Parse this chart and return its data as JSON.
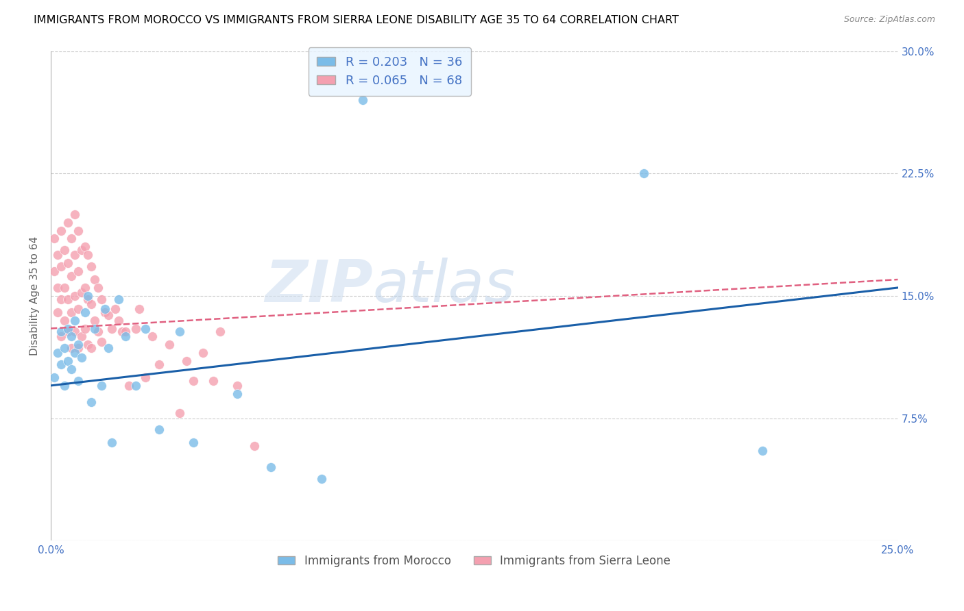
{
  "title": "IMMIGRANTS FROM MOROCCO VS IMMIGRANTS FROM SIERRA LEONE DISABILITY AGE 35 TO 64 CORRELATION CHART",
  "source": "Source: ZipAtlas.com",
  "ylabel_label": "Disability Age 35 to 64",
  "xlim": [
    0.0,
    0.25
  ],
  "ylim": [
    0.0,
    0.3
  ],
  "x_ticks": [
    0.0,
    0.05,
    0.1,
    0.15,
    0.2,
    0.25
  ],
  "x_tick_labels": [
    "0.0%",
    "",
    "",
    "",
    "",
    "25.0%"
  ],
  "y_ticks": [
    0.0,
    0.075,
    0.15,
    0.225,
    0.3
  ],
  "y_tick_labels": [
    "",
    "7.5%",
    "15.0%",
    "22.5%",
    "30.0%"
  ],
  "morocco_color": "#7bbce8",
  "sierra_leone_color": "#f4a0b0",
  "morocco_R": 0.203,
  "morocco_N": 36,
  "sierra_leone_R": 0.065,
  "sierra_leone_N": 68,
  "watermark": "ZIPatlas",
  "grid_color": "#cccccc",
  "legend_facecolor": "#e8f4ff",
  "morocco_line_color": "#1a5fa8",
  "sierra_leone_line_color": "#e06080",
  "background_color": "#ffffff",
  "axis_tick_color": "#4472c4",
  "title_fontsize": 11.5,
  "axis_label_fontsize": 11,
  "tick_fontsize": 11,
  "morocco_scatter_x": [
    0.001,
    0.002,
    0.003,
    0.003,
    0.004,
    0.004,
    0.005,
    0.005,
    0.006,
    0.006,
    0.007,
    0.007,
    0.008,
    0.008,
    0.009,
    0.01,
    0.011,
    0.012,
    0.013,
    0.015,
    0.016,
    0.017,
    0.018,
    0.02,
    0.022,
    0.025,
    0.028,
    0.032,
    0.038,
    0.042,
    0.055,
    0.065,
    0.08,
    0.092,
    0.175,
    0.21
  ],
  "morocco_scatter_y": [
    0.1,
    0.115,
    0.108,
    0.128,
    0.118,
    0.095,
    0.13,
    0.11,
    0.125,
    0.105,
    0.135,
    0.115,
    0.12,
    0.098,
    0.112,
    0.14,
    0.15,
    0.085,
    0.13,
    0.095,
    0.142,
    0.118,
    0.06,
    0.148,
    0.125,
    0.095,
    0.13,
    0.068,
    0.128,
    0.06,
    0.09,
    0.045,
    0.038,
    0.27,
    0.225,
    0.055
  ],
  "sierra_leone_scatter_x": [
    0.001,
    0.001,
    0.002,
    0.002,
    0.002,
    0.003,
    0.003,
    0.003,
    0.003,
    0.004,
    0.004,
    0.004,
    0.005,
    0.005,
    0.005,
    0.005,
    0.006,
    0.006,
    0.006,
    0.006,
    0.007,
    0.007,
    0.007,
    0.007,
    0.008,
    0.008,
    0.008,
    0.008,
    0.009,
    0.009,
    0.009,
    0.01,
    0.01,
    0.01,
    0.011,
    0.011,
    0.011,
    0.012,
    0.012,
    0.012,
    0.013,
    0.013,
    0.014,
    0.014,
    0.015,
    0.015,
    0.016,
    0.017,
    0.018,
    0.019,
    0.02,
    0.021,
    0.022,
    0.023,
    0.025,
    0.026,
    0.028,
    0.03,
    0.032,
    0.035,
    0.038,
    0.04,
    0.042,
    0.045,
    0.048,
    0.05,
    0.055,
    0.06
  ],
  "sierra_leone_scatter_y": [
    0.185,
    0.165,
    0.175,
    0.155,
    0.14,
    0.19,
    0.168,
    0.148,
    0.125,
    0.178,
    0.155,
    0.135,
    0.195,
    0.17,
    0.148,
    0.128,
    0.185,
    0.162,
    0.14,
    0.118,
    0.2,
    0.175,
    0.15,
    0.128,
    0.19,
    0.165,
    0.142,
    0.118,
    0.178,
    0.152,
    0.125,
    0.18,
    0.155,
    0.13,
    0.175,
    0.148,
    0.12,
    0.168,
    0.145,
    0.118,
    0.16,
    0.135,
    0.155,
    0.128,
    0.148,
    0.122,
    0.14,
    0.138,
    0.13,
    0.142,
    0.135,
    0.128,
    0.128,
    0.095,
    0.13,
    0.142,
    0.1,
    0.125,
    0.108,
    0.12,
    0.078,
    0.11,
    0.098,
    0.115,
    0.098,
    0.128,
    0.095,
    0.058
  ],
  "morocco_line_x0": 0.0,
  "morocco_line_y0": 0.095,
  "morocco_line_x1": 0.25,
  "morocco_line_y1": 0.155,
  "sierra_leone_line_x0": 0.0,
  "sierra_leone_line_y0": 0.13,
  "sierra_leone_line_x1": 0.25,
  "sierra_leone_line_y1": 0.16
}
